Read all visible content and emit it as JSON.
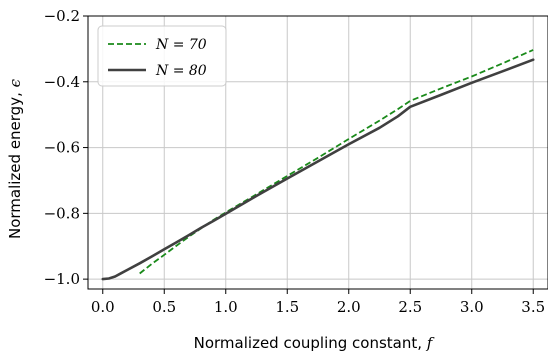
{
  "chart_data": {
    "type": "line",
    "xlabel": {
      "text": "Normalized coupling constant, ",
      "symbol": "f"
    },
    "ylabel": {
      "text": "Normalized energy, ",
      "symbol": "ϵ"
    },
    "xlim": [
      -0.12,
      3.62
    ],
    "ylim": [
      -1.03,
      -0.2
    ],
    "x_ticks": [
      0.0,
      0.5,
      1.0,
      1.5,
      2.0,
      2.5,
      3.0,
      3.5
    ],
    "x_tick_labels": [
      "0.0",
      "0.5",
      "1.0",
      "1.5",
      "2.0",
      "2.5",
      "3.0",
      "3.5"
    ],
    "y_ticks": [
      -1.0,
      -0.8,
      -0.6,
      -0.4,
      -0.2
    ],
    "y_tick_labels": [
      "−1.0",
      "−0.8",
      "−0.6",
      "−0.4",
      "−0.2"
    ],
    "grid": true,
    "legend_position": "top-left",
    "series": [
      {
        "name": "N = 70",
        "color": "#1a8a1a",
        "style": "dashed",
        "x": [
          0.3,
          0.4,
          0.5,
          0.6,
          0.7,
          0.8,
          0.9,
          1.0,
          1.25,
          1.5,
          1.75,
          2.0,
          2.25,
          2.4,
          2.5,
          2.75,
          3.0,
          3.25,
          3.5
        ],
        "y": [
          -0.983,
          -0.953,
          -0.926,
          -0.898,
          -0.871,
          -0.845,
          -0.82,
          -0.797,
          -0.742,
          -0.686,
          -0.631,
          -0.574,
          -0.518,
          -0.483,
          -0.458,
          -0.42,
          -0.384,
          -0.344,
          -0.303
        ]
      },
      {
        "name": "N = 80",
        "color": "#404040",
        "style": "solid",
        "x": [
          0.0,
          0.05,
          0.1,
          0.15,
          0.2,
          0.3,
          0.4,
          0.5,
          0.6,
          0.7,
          0.8,
          0.9,
          1.0,
          1.25,
          1.5,
          1.75,
          2.0,
          2.25,
          2.4,
          2.5,
          2.75,
          3.0,
          3.25,
          3.5
        ],
        "y": [
          -1.0,
          -0.998,
          -0.992,
          -0.982,
          -0.972,
          -0.952,
          -0.931,
          -0.909,
          -0.888,
          -0.866,
          -0.844,
          -0.823,
          -0.801,
          -0.747,
          -0.694,
          -0.642,
          -0.59,
          -0.54,
          -0.505,
          -0.476,
          -0.44,
          -0.403,
          -0.368,
          -0.333
        ]
      }
    ]
  }
}
